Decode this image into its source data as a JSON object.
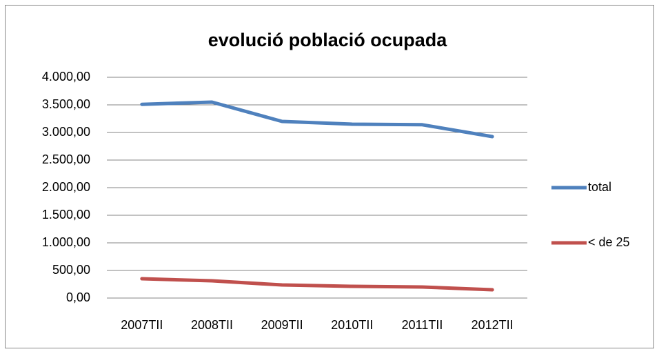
{
  "chart_data": {
    "type": "line",
    "title": "evolució població ocupada",
    "categories": [
      "2007TII",
      "2008TII",
      "2009TII",
      "2010TII",
      "2011TII",
      "2012TII"
    ],
    "series": [
      {
        "name": "total",
        "color": "#4f81bd",
        "values": [
          3510,
          3550,
          3200,
          3150,
          3140,
          2925
        ]
      },
      {
        "name": "< de 25",
        "color": "#c0504d",
        "values": [
          350,
          312,
          237,
          212,
          200,
          150
        ]
      }
    ],
    "ylim": [
      0,
      4000
    ],
    "yticks": [
      {
        "value": 0,
        "label": "0,00"
      },
      {
        "value": 500,
        "label": "500,00"
      },
      {
        "value": 1000,
        "label": "1.000,00"
      },
      {
        "value": 1500,
        "label": "1.500,00"
      },
      {
        "value": 2000,
        "label": "2.000,00"
      },
      {
        "value": 2500,
        "label": "2.500,00"
      },
      {
        "value": 3000,
        "label": "3.000,00"
      },
      {
        "value": 3500,
        "label": "3.500,00"
      },
      {
        "value": 4000,
        "label": "4.000,00"
      }
    ],
    "grid": true,
    "legend": "right"
  }
}
